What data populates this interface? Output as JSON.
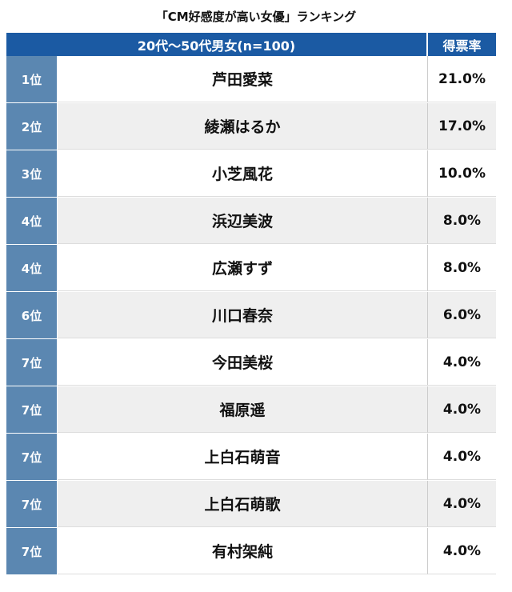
{
  "title": "「CM好感度が高い女優」ランキング",
  "table": {
    "header": [
      "20代〜50代男女(n=100)",
      "得票率"
    ],
    "rows": [
      [
        "1位",
        "芦田愛菜",
        "21.0%"
      ],
      [
        "2位",
        "綾瀬はるか",
        "17.0%"
      ],
      [
        "3位",
        "小芝風花",
        "10.0%"
      ],
      [
        "4位",
        "浜辺美波",
        "8.0%"
      ],
      [
        "4位",
        "広瀬すず",
        "8.0%"
      ],
      [
        "6位",
        "川口春奈",
        "6.0%"
      ],
      [
        "7位",
        "今田美桜",
        "4.0%"
      ],
      [
        "7位",
        "福原遥",
        "4.0%"
      ],
      [
        "7位",
        "上白石萌音",
        "4.0%"
      ],
      [
        "7位",
        "上白石萌歌",
        "4.0%"
      ],
      [
        "7位",
        "有村架純",
        "4.0%"
      ]
    ]
  }
}
